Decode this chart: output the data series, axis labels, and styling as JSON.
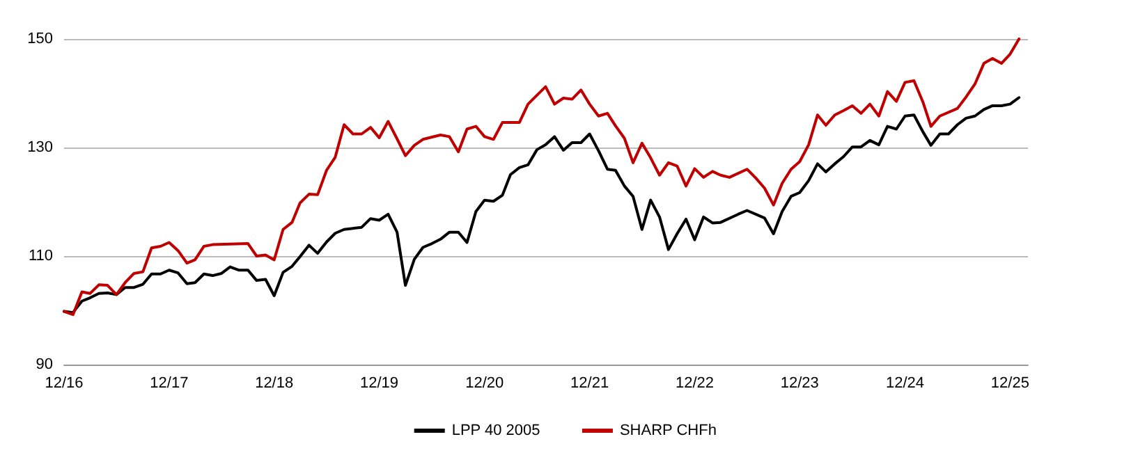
{
  "chart_data": {
    "type": "line",
    "xlim": [
      "2016-12",
      "2026-02"
    ],
    "ylim": [
      90,
      150
    ],
    "xticks": [
      {
        "value": "2016-12",
        "label": "12/16"
      },
      {
        "value": "2017-12",
        "label": "12/17"
      },
      {
        "value": "2018-12",
        "label": "12/18"
      },
      {
        "value": "2019-12",
        "label": "12/19"
      },
      {
        "value": "2020-12",
        "label": "12/20"
      },
      {
        "value": "2021-12",
        "label": "12/21"
      },
      {
        "value": "2022-12",
        "label": "12/22"
      },
      {
        "value": "2023-12",
        "label": "12/23"
      },
      {
        "value": "2024-12",
        "label": "12/24"
      },
      {
        "value": "2025-12",
        "label": "12/25"
      }
    ],
    "yticks": [
      90,
      110,
      130,
      150
    ],
    "grid": "y",
    "legend": "bottom",
    "marker": "none",
    "line_style": "solid",
    "series": [
      {
        "name": "LPP 40 2005",
        "color": "#000000",
        "x": [
          "2016-12",
          "2017-01",
          "2017-02",
          "2017-03",
          "2017-04",
          "2017-05",
          "2017-06",
          "2017-07",
          "2017-08",
          "2017-09",
          "2017-10",
          "2017-11",
          "2017-12",
          "2018-01",
          "2018-02",
          "2018-03",
          "2018-04",
          "2018-05",
          "2018-06",
          "2018-07",
          "2018-08",
          "2018-09",
          "2018-10",
          "2018-11",
          "2018-12",
          "2019-01",
          "2019-02",
          "2019-03",
          "2019-04",
          "2019-05",
          "2019-06",
          "2019-07",
          "2019-08",
          "2019-09",
          "2019-10",
          "2019-11",
          "2019-12",
          "2020-01",
          "2020-02",
          "2020-03",
          "2020-04",
          "2020-05",
          "2020-06",
          "2020-07",
          "2020-08",
          "2020-09",
          "2020-10",
          "2020-11",
          "2020-12",
          "2021-01",
          "2021-02",
          "2021-03",
          "2021-04",
          "2021-05",
          "2021-06",
          "2021-07",
          "2021-08",
          "2021-09",
          "2021-10",
          "2021-11",
          "2021-12",
          "2022-01",
          "2022-02",
          "2022-03",
          "2022-04",
          "2022-05",
          "2022-06",
          "2022-07",
          "2022-08",
          "2022-09",
          "2022-10",
          "2022-11",
          "2022-12",
          "2023-01",
          "2023-02",
          "2023-03",
          "2023-05",
          "2023-06",
          "2023-08",
          "2023-09",
          "2023-10",
          "2023-11",
          "2023-12",
          "2024-01",
          "2024-02",
          "2024-03",
          "2024-04",
          "2024-05",
          "2024-06",
          "2024-07",
          "2024-08",
          "2024-09",
          "2024-10",
          "2024-11",
          "2024-12",
          "2025-01",
          "2025-02",
          "2025-03",
          "2025-04",
          "2025-05",
          "2025-06",
          "2025-07",
          "2025-08",
          "2025-09",
          "2025-10",
          "2025-11",
          "2025-12",
          "2026-01"
        ],
        "values": [
          99.8,
          99.6,
          101.7,
          102.3,
          103.1,
          103.2,
          102.9,
          104.2,
          104.2,
          104.8,
          106.7,
          106.7,
          107.4,
          106.9,
          104.9,
          105.1,
          106.7,
          106.4,
          106.8,
          108.0,
          107.4,
          107.4,
          105.5,
          105.7,
          102.7,
          107.0,
          108.1,
          109.9,
          112.0,
          110.5,
          112.6,
          114.2,
          114.9,
          115.1,
          115.3,
          116.9,
          116.6,
          117.7,
          114.4,
          104.6,
          109.4,
          111.6,
          112.3,
          113.1,
          114.4,
          114.4,
          112.5,
          118.2,
          120.3,
          120.1,
          121.2,
          125.0,
          126.3,
          126.8,
          129.6,
          130.5,
          132.0,
          129.5,
          130.9,
          130.9,
          132.5,
          129.4,
          126.0,
          125.8,
          122.9,
          121.0,
          114.9,
          120.3,
          117.2,
          111.2,
          114.1,
          116.8,
          113.0,
          117.2,
          116.1,
          116.2,
          117.7,
          118.4,
          117.0,
          114.1,
          118.2,
          121.0,
          121.7,
          123.9,
          127.0,
          125.5,
          127.0,
          128.3,
          130.1,
          130.1,
          131.3,
          130.5,
          133.9,
          133.4,
          135.8,
          136.0,
          132.9,
          130.4,
          132.5,
          132.5,
          134.2,
          135.4,
          135.8,
          137.0,
          137.7,
          137.7,
          138.0,
          139.2
        ]
      },
      {
        "name": "SHARP CHFh",
        "color": "#c00000",
        "x": [
          "2016-12",
          "2017-01",
          "2017-02",
          "2017-03",
          "2017-04",
          "2017-05",
          "2017-06",
          "2017-07",
          "2017-08",
          "2017-09",
          "2017-10",
          "2017-11",
          "2017-12",
          "2018-01",
          "2018-02",
          "2018-03",
          "2018-04",
          "2018-05",
          "2018-07",
          "2018-09",
          "2018-10",
          "2018-11",
          "2018-12",
          "2019-01",
          "2019-02",
          "2019-03",
          "2019-04",
          "2019-05",
          "2019-06",
          "2019-07",
          "2019-08",
          "2019-09",
          "2019-10",
          "2019-11",
          "2019-12",
          "2020-01",
          "2020-02",
          "2020-03",
          "2020-04",
          "2020-05",
          "2020-07",
          "2020-08",
          "2020-09",
          "2020-10",
          "2020-11",
          "2020-12",
          "2021-01",
          "2021-02",
          "2021-04",
          "2021-05",
          "2021-07",
          "2021-08",
          "2021-09",
          "2021-10",
          "2021-11",
          "2021-12",
          "2022-01",
          "2022-02",
          "2022-03",
          "2022-04",
          "2022-05",
          "2022-06",
          "2022-07",
          "2022-08",
          "2022-09",
          "2022-10",
          "2022-11",
          "2022-12",
          "2023-01",
          "2023-02",
          "2023-03",
          "2023-04",
          "2023-06",
          "2023-07",
          "2023-08",
          "2023-09",
          "2023-10",
          "2023-11",
          "2023-12",
          "2024-01",
          "2024-02",
          "2024-03",
          "2024-04",
          "2024-05",
          "2024-06",
          "2024-07",
          "2024-08",
          "2024-09",
          "2024-10",
          "2024-11",
          "2024-12",
          "2025-01",
          "2025-02",
          "2025-03",
          "2025-04",
          "2025-06",
          "2025-07",
          "2025-08",
          "2025-09",
          "2025-10",
          "2025-11",
          "2025-12",
          "2026-01"
        ],
        "values": [
          99.8,
          99.2,
          103.4,
          103.1,
          104.7,
          104.6,
          102.9,
          105.1,
          106.8,
          107.1,
          111.5,
          111.8,
          112.5,
          111.0,
          108.7,
          109.3,
          111.8,
          112.1,
          112.2,
          112.3,
          110.0,
          110.2,
          109.3,
          114.9,
          116.2,
          119.8,
          121.4,
          121.3,
          125.8,
          128.2,
          134.2,
          132.5,
          132.5,
          133.7,
          131.8,
          134.8,
          131.6,
          128.5,
          130.4,
          131.5,
          132.3,
          132.0,
          129.2,
          133.4,
          133.9,
          132.0,
          131.5,
          134.6,
          134.6,
          138.0,
          141.2,
          138.0,
          139.1,
          138.9,
          140.6,
          138.0,
          135.8,
          136.3,
          134.0,
          131.7,
          127.2,
          130.8,
          128.1,
          124.9,
          127.2,
          126.6,
          122.9,
          126.1,
          124.5,
          125.6,
          124.9,
          124.5,
          126.0,
          124.4,
          122.5,
          119.4,
          123.4,
          126.0,
          127.4,
          130.5,
          136.0,
          134.1,
          136.0,
          136.8,
          137.7,
          136.3,
          138.0,
          135.8,
          140.3,
          138.5,
          142.0,
          142.3,
          138.4,
          133.9,
          135.8,
          137.2,
          139.3,
          141.7,
          145.5,
          146.4,
          145.5,
          147.2,
          150.0
        ]
      }
    ]
  }
}
